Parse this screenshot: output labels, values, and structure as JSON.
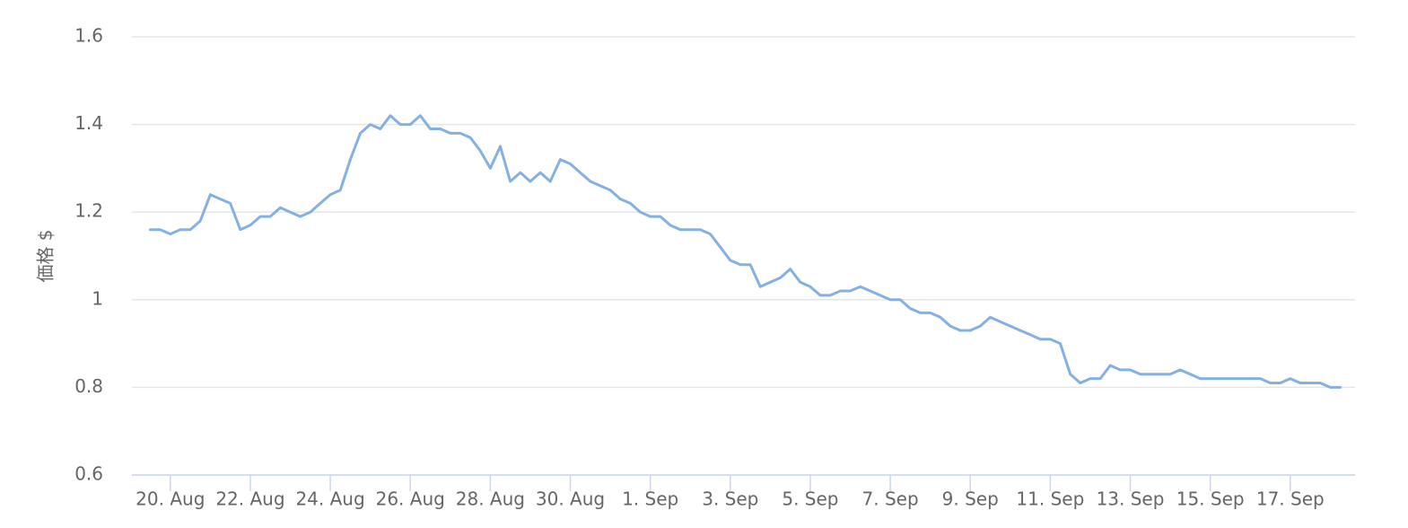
{
  "chart_data": {
    "type": "line",
    "y_label": "価格 $",
    "color": "#85b0e3",
    "grid": true,
    "ylim": [
      0.6,
      1.6
    ],
    "yticks": [
      0.6,
      0.8,
      1,
      1.2,
      1.4,
      1.6
    ],
    "xlim": [
      19.04,
      49.62
    ],
    "xticks": [
      {
        "value": 20,
        "label": "20. Aug"
      },
      {
        "value": 22,
        "label": "22. Aug"
      },
      {
        "value": 24,
        "label": "24. Aug"
      },
      {
        "value": 26,
        "label": "26. Aug"
      },
      {
        "value": 28,
        "label": "28. Aug"
      },
      {
        "value": 30,
        "label": "30. Aug"
      },
      {
        "value": 32,
        "label": "1. Sep"
      },
      {
        "value": 34,
        "label": "3. Sep"
      },
      {
        "value": 36,
        "label": "5. Sep"
      },
      {
        "value": 38,
        "label": "7. Sep"
      },
      {
        "value": 40,
        "label": "9. Sep"
      },
      {
        "value": 42,
        "label": "11. Sep"
      },
      {
        "value": 44,
        "label": "13. Sep"
      },
      {
        "value": 46,
        "label": "15. Sep"
      },
      {
        "value": 48,
        "label": "17. Sep"
      }
    ],
    "x": [
      19.5,
      19.75,
      20,
      20.25,
      20.5,
      20.75,
      21,
      21.25,
      21.5,
      21.75,
      22,
      22.25,
      22.5,
      22.75,
      23,
      23.25,
      23.5,
      23.75,
      24,
      24.25,
      24.5,
      24.75,
      25,
      25.25,
      25.5,
      25.75,
      26,
      26.25,
      26.5,
      26.75,
      27,
      27.25,
      27.5,
      27.75,
      28,
      28.25,
      28.5,
      28.75,
      29,
      29.25,
      29.5,
      29.75,
      30,
      30.25,
      30.5,
      30.75,
      31,
      31.25,
      31.5,
      31.75,
      32,
      32.25,
      32.5,
      32.75,
      33,
      33.25,
      33.5,
      33.75,
      34,
      34.25,
      34.5,
      34.75,
      35,
      35.25,
      35.5,
      35.75,
      36,
      36.25,
      36.5,
      36.75,
      37,
      37.25,
      37.5,
      37.75,
      38,
      38.25,
      38.5,
      38.75,
      39,
      39.25,
      39.5,
      39.75,
      40,
      40.25,
      40.5,
      40.75,
      41,
      41.25,
      41.5,
      41.75,
      42,
      42.25,
      42.5,
      42.75,
      43,
      43.25,
      43.5,
      43.75,
      44,
      44.25,
      44.5,
      44.75,
      45,
      45.25,
      45.5,
      45.75,
      46,
      46.25,
      46.5,
      46.75,
      47,
      47.25,
      47.5,
      47.75,
      48,
      48.25,
      48.5,
      48.75,
      49,
      49.25
    ],
    "values": [
      1.16,
      1.16,
      1.15,
      1.16,
      1.16,
      1.18,
      1.24,
      1.23,
      1.22,
      1.16,
      1.17,
      1.19,
      1.19,
      1.21,
      1.2,
      1.19,
      1.2,
      1.22,
      1.24,
      1.25,
      1.32,
      1.38,
      1.4,
      1.39,
      1.42,
      1.4,
      1.4,
      1.42,
      1.39,
      1.39,
      1.38,
      1.38,
      1.37,
      1.34,
      1.3,
      1.35,
      1.27,
      1.29,
      1.27,
      1.29,
      1.27,
      1.32,
      1.31,
      1.29,
      1.27,
      1.26,
      1.25,
      1.23,
      1.22,
      1.2,
      1.19,
      1.19,
      1.17,
      1.16,
      1.16,
      1.16,
      1.15,
      1.12,
      1.09,
      1.08,
      1.08,
      1.03,
      1.04,
      1.05,
      1.07,
      1.04,
      1.03,
      1.01,
      1.01,
      1.02,
      1.02,
      1.03,
      1.02,
      1.01,
      1,
      1,
      0.98,
      0.97,
      0.97,
      0.96,
      0.94,
      0.93,
      0.93,
      0.94,
      0.96,
      0.95,
      0.94,
      0.93,
      0.92,
      0.91,
      0.91,
      0.9,
      0.83,
      0.81,
      0.82,
      0.82,
      0.85,
      0.84,
      0.84,
      0.83,
      0.83,
      0.83,
      0.83,
      0.84,
      0.83,
      0.82,
      0.82,
      0.82,
      0.82,
      0.82,
      0.82,
      0.82,
      0.81,
      0.81,
      0.82,
      0.81,
      0.81,
      0.81,
      0.8,
      0.8
    ]
  }
}
